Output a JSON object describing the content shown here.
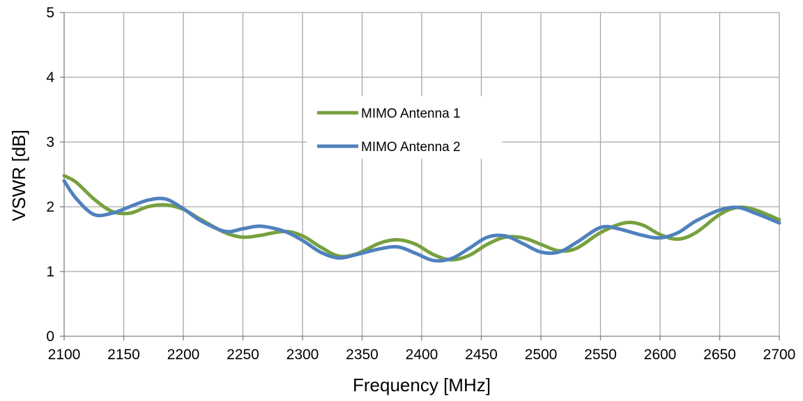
{
  "chart_data": {
    "type": "line",
    "xlabel": "Frequency [MHz]",
    "ylabel": "VSWR [dB]",
    "xlim": [
      2100,
      2700
    ],
    "ylim": [
      0,
      5
    ],
    "xticks": [
      2100,
      2150,
      2200,
      2250,
      2300,
      2350,
      2400,
      2450,
      2500,
      2550,
      2600,
      2650,
      2700
    ],
    "yticks": [
      0,
      1,
      2,
      3,
      4,
      5
    ],
    "grid": true,
    "legend": "center",
    "series": [
      {
        "name": "MIMO Antenna 1",
        "color": "#77a03f",
        "x": [
          2100,
          2110,
          2125,
          2140,
          2155,
          2170,
          2185,
          2200,
          2215,
          2235,
          2250,
          2265,
          2285,
          2300,
          2315,
          2330,
          2345,
          2365,
          2380,
          2395,
          2410,
          2425,
          2440,
          2455,
          2470,
          2485,
          2500,
          2515,
          2530,
          2550,
          2570,
          2585,
          2600,
          2615,
          2630,
          2650,
          2665,
          2680,
          2700
        ],
        "y": [
          2.48,
          2.38,
          2.12,
          1.93,
          1.9,
          2.0,
          2.03,
          1.96,
          1.8,
          1.6,
          1.53,
          1.56,
          1.62,
          1.55,
          1.38,
          1.24,
          1.27,
          1.44,
          1.49,
          1.42,
          1.26,
          1.18,
          1.25,
          1.42,
          1.53,
          1.52,
          1.42,
          1.32,
          1.36,
          1.6,
          1.75,
          1.72,
          1.57,
          1.5,
          1.6,
          1.88,
          1.99,
          1.95,
          1.8
        ]
      },
      {
        "name": "MIMO Antenna 2",
        "color": "#4f81bd",
        "x": [
          2100,
          2110,
          2125,
          2140,
          2155,
          2170,
          2185,
          2200,
          2215,
          2235,
          2250,
          2265,
          2285,
          2300,
          2315,
          2330,
          2345,
          2365,
          2380,
          2395,
          2410,
          2425,
          2440,
          2455,
          2470,
          2485,
          2500,
          2515,
          2530,
          2550,
          2565,
          2585,
          2600,
          2615,
          2630,
          2650,
          2665,
          2680,
          2700
        ],
        "y": [
          2.4,
          2.13,
          1.88,
          1.9,
          2.0,
          2.1,
          2.12,
          1.97,
          1.78,
          1.62,
          1.66,
          1.7,
          1.62,
          1.48,
          1.3,
          1.21,
          1.26,
          1.35,
          1.38,
          1.28,
          1.17,
          1.2,
          1.36,
          1.53,
          1.55,
          1.43,
          1.3,
          1.3,
          1.45,
          1.68,
          1.66,
          1.56,
          1.52,
          1.6,
          1.78,
          1.95,
          1.99,
          1.9,
          1.75
        ]
      }
    ]
  }
}
